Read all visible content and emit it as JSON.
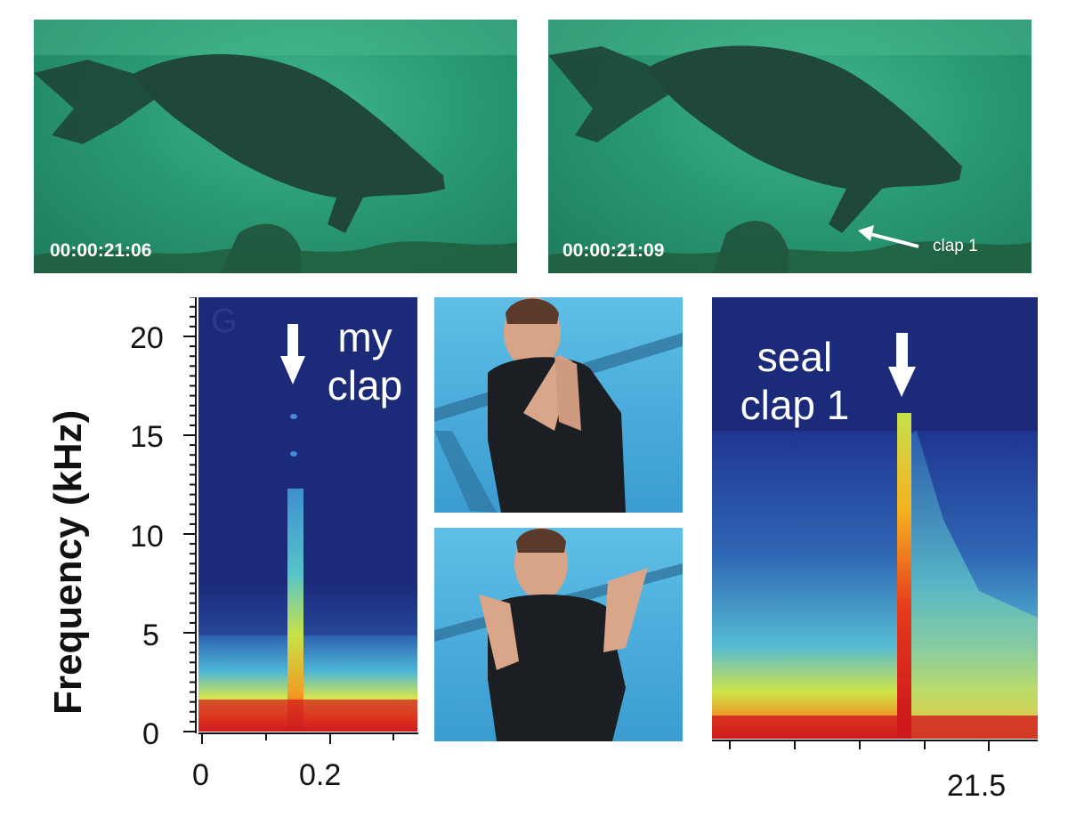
{
  "photos": {
    "seal_frame_1": {
      "timecode": "00:00:21:06"
    },
    "seal_frame_2": {
      "timecode": "00:00:21:09",
      "annotation": "clap 1"
    }
  },
  "spectrogram_left": {
    "label_line1": "my",
    "label_line2": "clap",
    "watermark": "G"
  },
  "spectrogram_right": {
    "label_line1": "seal",
    "label_line2": "clap 1"
  },
  "axes": {
    "ylabel": "Frequency (kHz)",
    "y_ticks": [
      "20",
      "15",
      "10",
      "5",
      "0"
    ],
    "x_ticks_left": [
      "0",
      "0.2"
    ],
    "x_ticks_right": [
      "21.5"
    ]
  },
  "colors": {
    "spec_bg": "#1c2a7a",
    "water": "#2a9a73",
    "pool": "#48a9da"
  }
}
